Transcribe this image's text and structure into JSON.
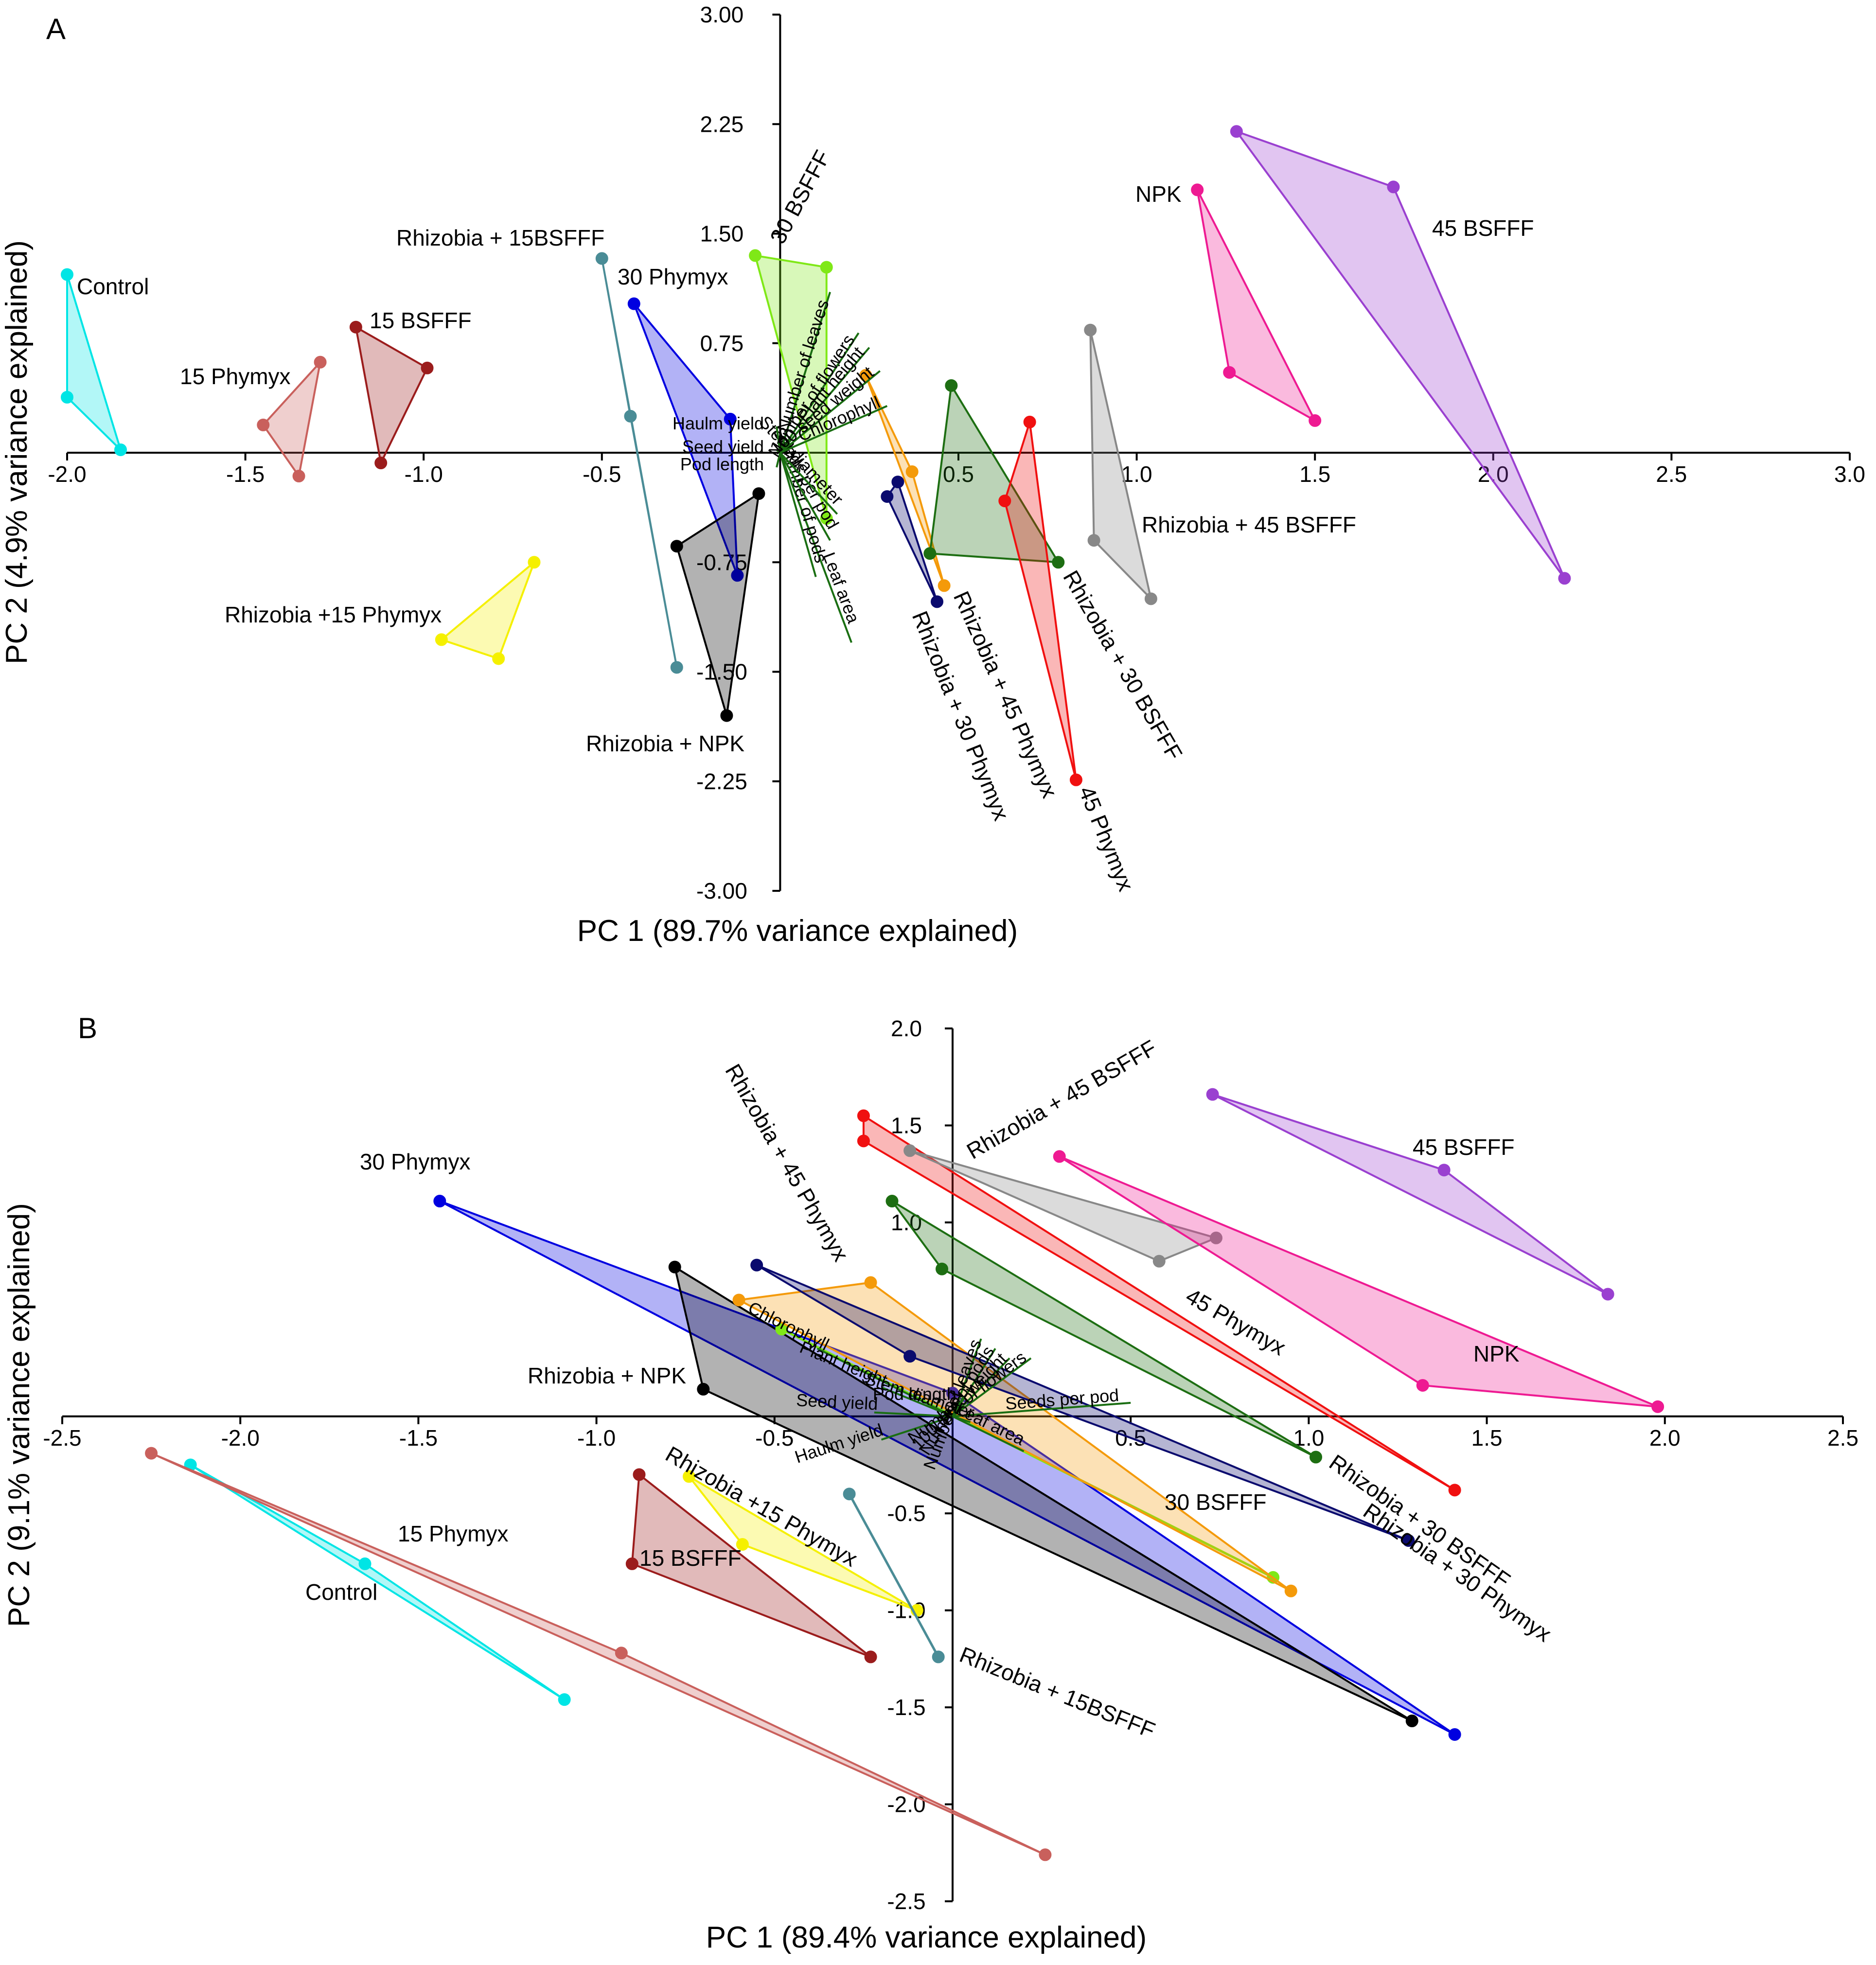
{
  "chart_data": [
    {
      "type": "scatter",
      "panel": "A",
      "xlabel": "PC 1 (89.7% variance explained)",
      "ylabel": "PC 2 (4.9% variance explained)",
      "xlim": [
        -2.0,
        3.0
      ],
      "ylim": [
        -3.0,
        3.0
      ],
      "x_ticks": [
        -2.0,
        -1.5,
        -1.0,
        -0.5,
        0.5,
        1.0,
        1.5,
        2.0,
        2.5,
        3.0
      ],
      "x_tick_labels": [
        "-2.0",
        "-1.5",
        "-1.0",
        "-0.5",
        "0.5",
        "1.0",
        "1.5",
        "2.0",
        "2.5",
        "3.0"
      ],
      "y_ticks": [
        3.0,
        2.25,
        1.5,
        0.75,
        -0.75,
        -1.5,
        -2.25,
        -3.0
      ],
      "y_tick_labels": [
        "3.00",
        "2.25",
        "1.50",
        "0.75",
        "-0.75",
        "-1.50",
        "-2.25",
        "-3.00"
      ],
      "series": [
        {
          "name": "Control",
          "color": "#00e5e5",
          "points": [
            [
              -2.0,
              1.22
            ],
            [
              -2.0,
              0.38
            ],
            [
              -1.85,
              0.02
            ]
          ]
        },
        {
          "name": "15 Phymyx",
          "color": "#c9605c",
          "points": [
            [
              -1.29,
              0.62
            ],
            [
              -1.45,
              0.19
            ],
            [
              -1.35,
              -0.16
            ]
          ]
        },
        {
          "name": "15 BSFFF",
          "color": "#9b1c1c",
          "points": [
            [
              -1.19,
              0.86
            ],
            [
              -0.99,
              0.58
            ],
            [
              -1.12,
              -0.07
            ]
          ]
        },
        {
          "name": "Rhizobia + 15BSFFF",
          "color": "#4a8c96",
          "points": [
            [
              -0.5,
              1.33
            ],
            [
              -0.42,
              0.25
            ],
            [
              -0.29,
              -1.47
            ]
          ]
        },
        {
          "name": "30 Phymyx",
          "color": "#0000e0",
          "points": [
            [
              -0.41,
              1.02
            ],
            [
              -0.14,
              0.23
            ],
            [
              -0.12,
              -0.84
            ]
          ]
        },
        {
          "name": "30 BSFFF",
          "color": "#7fe817",
          "points": [
            [
              -0.07,
              1.35
            ],
            [
              0.13,
              1.27
            ],
            [
              0.13,
              -0.45
            ]
          ]
        },
        {
          "name": "Rhizobia + NPK",
          "color": "#000000",
          "points": [
            [
              -0.06,
              -0.28
            ],
            [
              -0.29,
              -0.64
            ],
            [
              -0.15,
              -1.8
            ]
          ]
        },
        {
          "name": "Rhizobia +15 Phymyx",
          "color": "#f5f000",
          "points": [
            [
              -0.69,
              -0.75
            ],
            [
              -0.95,
              -1.28
            ],
            [
              -0.79,
              -1.41
            ]
          ]
        },
        {
          "name": "Rhizobia + 45 Phymyx",
          "color": "#f49a0a",
          "points": [
            [
              0.24,
              0.53
            ],
            [
              0.37,
              -0.13
            ],
            [
              0.46,
              -0.91
            ]
          ]
        },
        {
          "name": "Rhizobia + 30 Phymyx",
          "color": "#0a0a6e",
          "points": [
            [
              0.33,
              -0.2
            ],
            [
              0.3,
              -0.3
            ],
            [
              0.44,
              -1.02
            ]
          ]
        },
        {
          "name": "Rhizobia + 30 BSFFF",
          "color": "#1d6e12",
          "points": [
            [
              0.48,
              0.46
            ],
            [
              0.42,
              -0.69
            ],
            [
              0.78,
              -0.75
            ]
          ]
        },
        {
          "name": "45 Phymyx",
          "color": "#f01010",
          "points": [
            [
              0.7,
              0.21
            ],
            [
              0.63,
              -0.33
            ],
            [
              0.83,
              -2.24
            ]
          ]
        },
        {
          "name": "Rhizobia + 45 BSFFF",
          "color": "#888888",
          "points": [
            [
              0.87,
              0.84
            ],
            [
              0.88,
              -0.6
            ],
            [
              1.04,
              -1.0
            ]
          ]
        },
        {
          "name": "NPK",
          "color": "#ee1a92",
          "points": [
            [
              1.17,
              1.8
            ],
            [
              1.26,
              0.55
            ],
            [
              1.5,
              0.22
            ]
          ]
        },
        {
          "name": "45 BSFFF",
          "color": "#9a40d0",
          "points": [
            [
              1.28,
              2.2
            ],
            [
              1.72,
              1.82
            ],
            [
              2.2,
              -0.86
            ]
          ]
        }
      ],
      "group_labels": [
        "Control",
        "15 Phymyx",
        "15 BSFFF",
        "Rhizobia + 15BSFFF",
        "30 Phymyx",
        "30 BSFFF",
        "Rhizobia + NPK",
        "Rhizobia +15 Phymyx",
        "Rhizobia + 45 Phymyx",
        "Rhizobia + 30 Phymyx",
        "Rhizobia + 30 BSFFF",
        "45 Phymyx",
        "Rhizobia + 45 BSFFF",
        "NPK",
        "45 BSFFF"
      ],
      "loadings_color": "#1a6e12",
      "loadings": [
        {
          "name": "Leaf area",
          "x": 0.2,
          "y": -1.3
        },
        {
          "name": "Number of pods",
          "x": 0.1,
          "y": -0.85
        },
        {
          "name": "Seeds per pod",
          "x": 0.14,
          "y": -0.6
        },
        {
          "name": "Stem diameter",
          "x": 0.16,
          "y": -0.42
        },
        {
          "name": "Pod length",
          "x": -0.01,
          "y": -0.1
        },
        {
          "name": "Seed yield",
          "x": -0.01,
          "y": 0.02
        },
        {
          "name": "Haulm yield",
          "x": -0.01,
          "y": 0.18
        },
        {
          "name": "Number of leaves",
          "x": 0.14,
          "y": 1.1
        },
        {
          "name": "Number of flowers",
          "x": 0.22,
          "y": 0.82
        },
        {
          "name": "Plant height",
          "x": 0.25,
          "y": 0.72
        },
        {
          "name": "100 seed weight",
          "x": 0.28,
          "y": 0.56
        },
        {
          "name": "Chlorophyll",
          "x": 0.3,
          "y": 0.32
        }
      ]
    },
    {
      "type": "scatter",
      "panel": "B",
      "xlabel": "PC 1 (89.4% variance explained)",
      "ylabel": "PC 2 (9.1% variance explained)",
      "xlim": [
        -2.5,
        2.5
      ],
      "ylim": [
        -2.5,
        2.0
      ],
      "x_ticks": [
        -2.5,
        -2.0,
        -1.5,
        -1.0,
        -0.5,
        0.5,
        1.0,
        1.5,
        2.0,
        2.5
      ],
      "x_tick_labels": [
        "-2.5",
        "-2.0",
        "-1.5",
        "-1.0",
        "-0.5",
        "0.5",
        "1.0",
        "1.5",
        "2.0",
        "2.5"
      ],
      "y_ticks": [
        2.0,
        1.5,
        1.0,
        -0.5,
        -1.0,
        -1.5,
        -2.0,
        -2.5
      ],
      "y_tick_labels": [
        "2.0",
        "1.5",
        "1.0",
        "-0.5",
        "-1.0",
        "-1.5",
        "-2.0",
        "-2.5"
      ],
      "series": [
        {
          "name": "Control",
          "color": "#00e5e5",
          "points": [
            [
              -2.14,
              -0.25
            ],
            [
              -1.65,
              -0.76
            ],
            [
              -1.09,
              -1.46
            ]
          ]
        },
        {
          "name": "15 Phymyx",
          "color": "#c9605c",
          "points": [
            [
              -2.25,
              -0.19
            ],
            [
              -0.93,
              -1.22
            ],
            [
              0.26,
              -2.26
            ]
          ]
        },
        {
          "name": "15 BSFFF",
          "color": "#9b1c1c",
          "points": [
            [
              -0.88,
              -0.3
            ],
            [
              -0.9,
              -0.76
            ],
            [
              -0.23,
              -1.24
            ]
          ]
        },
        {
          "name": "Rhizobia +15 Phymyx",
          "color": "#f5f000",
          "points": [
            [
              -0.74,
              -0.31
            ],
            [
              -0.59,
              -0.66
            ],
            [
              -0.1,
              -1.0
            ]
          ]
        },
        {
          "name": "Rhizobia + 15BSFFF",
          "color": "#4a8c96",
          "points": [
            [
              -0.29,
              -0.4
            ],
            [
              -0.04,
              -1.24
            ]
          ]
        },
        {
          "name": "30 Phymyx",
          "color": "#0000e0",
          "points": [
            [
              -1.44,
              1.11
            ],
            [
              0.0,
              0.12
            ],
            [
              1.41,
              -1.64
            ]
          ]
        },
        {
          "name": "Rhizobia + NPK",
          "color": "#000000",
          "points": [
            [
              -0.78,
              0.77
            ],
            [
              -0.7,
              0.14
            ],
            [
              1.29,
              -1.57
            ]
          ]
        },
        {
          "name": "30 BSFFF",
          "color": "#7fe817",
          "points": [
            [
              -0.48,
              0.45
            ],
            [
              0.9,
              -0.83
            ]
          ]
        },
        {
          "name": "Rhizobia + 45 Phymyx",
          "color": "#f49a0a",
          "points": [
            [
              -0.6,
              0.6
            ],
            [
              -0.23,
              0.69
            ],
            [
              0.95,
              -0.9
            ]
          ]
        },
        {
          "name": "Rhizobia + 30 Phymyx",
          "color": "#0a0a6e",
          "points": [
            [
              -0.55,
              0.78
            ],
            [
              -0.12,
              0.31
            ],
            [
              1.28,
              -0.64
            ]
          ]
        },
        {
          "name": "Rhizobia + 30 BSFFF",
          "color": "#1d6e12",
          "points": [
            [
              -0.17,
              1.11
            ],
            [
              -0.03,
              0.76
            ],
            [
              1.02,
              -0.21
            ]
          ]
        },
        {
          "name": "45 Phymyx",
          "color": "#f01010",
          "points": [
            [
              -0.25,
              1.55
            ],
            [
              -0.25,
              1.42
            ],
            [
              1.41,
              -0.38
            ]
          ]
        },
        {
          "name": "Rhizobia + 45 BSFFF",
          "color": "#888888",
          "points": [
            [
              -0.12,
              1.37
            ],
            [
              0.74,
              0.92
            ],
            [
              0.58,
              0.8
            ]
          ]
        },
        {
          "name": "NPK",
          "color": "#ee1a92",
          "points": [
            [
              0.3,
              1.34
            ],
            [
              1.32,
              0.16
            ],
            [
              1.98,
              0.05
            ]
          ]
        },
        {
          "name": "45 BSFFF",
          "color": "#9a40d0",
          "points": [
            [
              0.73,
              1.66
            ],
            [
              1.38,
              1.27
            ],
            [
              1.84,
              0.63
            ]
          ]
        }
      ],
      "group_labels": [
        "Control",
        "15 Phymyx",
        "15 BSFFF",
        "Rhizobia +15 Phymyx",
        "Rhizobia + 15BSFFF",
        "30 Phymyx",
        "Rhizobia + NPK",
        "30 BSFFF",
        "Rhizobia + 45 Phymyx",
        "Rhizobia + 30 Phymyx",
        "Rhizobia + 30 BSFFF",
        "45 Phymyx",
        "Rhizobia + 45 BSFFF",
        "NPK",
        "45 BSFFF"
      ],
      "loadings_color": "#1a6e12",
      "loadings": [
        {
          "name": "Chlorophyll",
          "x": -0.38,
          "y": 0.35
        },
        {
          "name": "Plant height",
          "x": -0.2,
          "y": 0.15
        },
        {
          "name": "Seed yield",
          "x": -0.22,
          "y": 0.02
        },
        {
          "name": "Haulm yield",
          "x": -0.2,
          "y": -0.12
        },
        {
          "name": "Number of leaves",
          "x": 0.08,
          "y": 0.4
        },
        {
          "name": "Number of pods",
          "x": 0.12,
          "y": 0.35
        },
        {
          "name": "100 seed weight",
          "x": 0.16,
          "y": 0.3
        },
        {
          "name": "Number of flowers",
          "x": 0.22,
          "y": 0.3
        },
        {
          "name": "Seeds per pod",
          "x": 0.5,
          "y": 0.07
        },
        {
          "name": "Pod length",
          "x": 0.03,
          "y": 0.1
        },
        {
          "name": "Stem diameter",
          "x": 0.05,
          "y": -0.03
        },
        {
          "name": "Leaf area",
          "x": 0.2,
          "y": -0.18
        }
      ]
    }
  ],
  "panel_letters": {
    "a": "A",
    "b": "B"
  }
}
